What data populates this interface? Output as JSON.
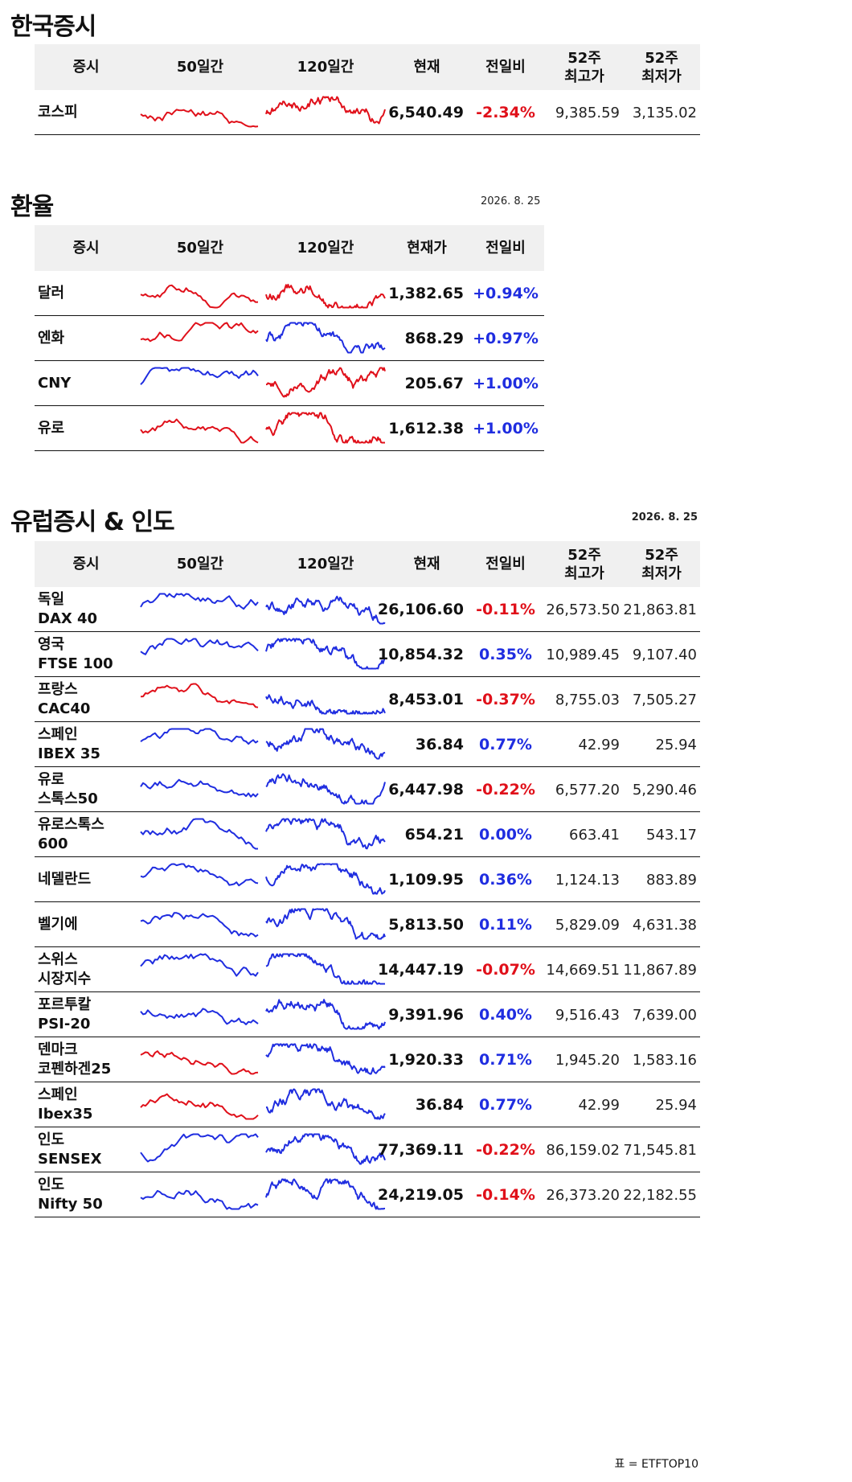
{
  "korea": {
    "title": "한국증시",
    "headers": [
      "증시",
      "50일간",
      "120일간",
      "현재",
      "전일비",
      "52주\n최고가",
      "52주\n최저가"
    ],
    "rows": [
      {
        "name": "코스피",
        "current": "6,540.49",
        "change": "-2.34%",
        "high52": "9,385.59",
        "low52": "3,135.02",
        "dir": "down",
        "c50": "red",
        "c120": "red"
      }
    ]
  },
  "fx": {
    "title": "환율",
    "date": "2026. 8. 25",
    "headers": [
      "증시",
      "50일간",
      "120일간",
      "현재가",
      "전일비"
    ],
    "rows": [
      {
        "name": "달러",
        "current": "1,382.65",
        "change": "+0.94%",
        "dir": "up",
        "c50": "red",
        "c120": "red"
      },
      {
        "name": "엔화",
        "current": "868.29",
        "change": "+0.97%",
        "dir": "up",
        "c50": "red",
        "c120": "blue"
      },
      {
        "name": "CNY",
        "current": "205.67",
        "change": "+1.00%",
        "dir": "up",
        "c50": "blue",
        "c120": "red"
      },
      {
        "name": "유로",
        "current": "1,612.38",
        "change": "+1.00%",
        "dir": "up",
        "c50": "red",
        "c120": "red"
      }
    ]
  },
  "europe": {
    "title": "유럽증시 & 인도",
    "date": "2026. 8. 25",
    "headers": [
      "증시",
      "50일간",
      "120일간",
      "현재",
      "전일비",
      "52주\n최고가",
      "52주\n최저가"
    ],
    "rows": [
      {
        "name1": "독일",
        "name2": "DAX 40",
        "current": "26,106.60",
        "change": "-0.11%",
        "high52": "26,573.50",
        "low52": "21,863.81",
        "dir": "down",
        "c50": "blue",
        "c120": "blue"
      },
      {
        "name1": "영국",
        "name2": "FTSE 100",
        "current": "10,854.32",
        "change": "0.35%",
        "high52": "10,989.45",
        "low52": "9,107.40",
        "dir": "up",
        "c50": "blue",
        "c120": "blue"
      },
      {
        "name1": "프랑스",
        "name2": "CAC40",
        "current": "8,453.01",
        "change": "-0.37%",
        "high52": "8,755.03",
        "low52": "7,505.27",
        "dir": "down",
        "c50": "red",
        "c120": "blue"
      },
      {
        "name1": "스페인",
        "name2": "IBEX 35",
        "current": "36.84",
        "change": "0.77%",
        "high52": "42.99",
        "low52": "25.94",
        "dir": "up",
        "c50": "blue",
        "c120": "blue"
      },
      {
        "name1": "유로",
        "name2": "스톡스50",
        "current": "6,447.98",
        "change": "-0.22%",
        "high52": "6,577.20",
        "low52": "5,290.46",
        "dir": "down",
        "c50": "blue",
        "c120": "blue"
      },
      {
        "name1": "유로스톡스",
        "name2": "600",
        "current": "654.21",
        "change": "0.00%",
        "high52": "663.41",
        "low52": "543.17",
        "dir": "up",
        "c50": "blue",
        "c120": "blue"
      },
      {
        "name1": "네델란드",
        "name2": "",
        "current": "1,109.95",
        "change": "0.36%",
        "high52": "1,124.13",
        "low52": "883.89",
        "dir": "up",
        "c50": "blue",
        "c120": "blue"
      },
      {
        "name1": "벨기에",
        "name2": "",
        "current": "5,813.50",
        "change": "0.11%",
        "high52": "5,829.09",
        "low52": "4,631.38",
        "dir": "up",
        "c50": "blue",
        "c120": "blue"
      },
      {
        "name1": "스위스",
        "name2": "시장지수",
        "current": "14,447.19",
        "change": "-0.07%",
        "high52": "14,669.51",
        "low52": "11,867.89",
        "dir": "down",
        "c50": "blue",
        "c120": "blue"
      },
      {
        "name1": "포르투칼",
        "name2": "PSI-20",
        "current": "9,391.96",
        "change": "0.40%",
        "high52": "9,516.43",
        "low52": "7,639.00",
        "dir": "up",
        "c50": "blue",
        "c120": "blue"
      },
      {
        "name1": "덴마크",
        "name2": "코펜하겐25",
        "current": "1,920.33",
        "change": "0.71%",
        "high52": "1,945.20",
        "low52": "1,583.16",
        "dir": "up",
        "c50": "red",
        "c120": "blue"
      },
      {
        "name1": "스페인",
        "name2": "Ibex35",
        "current": "36.84",
        "change": "0.77%",
        "high52": "42.99",
        "low52": "25.94",
        "dir": "up",
        "c50": "red",
        "c120": "blue"
      },
      {
        "name1": "인도",
        "name2": "SENSEX",
        "current": "77,369.11",
        "change": "-0.22%",
        "high52": "86,159.02",
        "low52": "71,545.81",
        "dir": "down",
        "c50": "blue",
        "c120": "blue"
      },
      {
        "name1": "인도",
        "name2": "Nifty 50",
        "current": "24,219.05",
        "change": "-0.14%",
        "high52": "26,373.20",
        "low52": "22,182.55",
        "dir": "down",
        "c50": "blue",
        "c120": "blue"
      }
    ]
  },
  "footer": "표 = ETFTOP10",
  "colors": {
    "red": "#e0101a",
    "blue": "#1f2de0",
    "header_bg": "#f0f0f0"
  }
}
